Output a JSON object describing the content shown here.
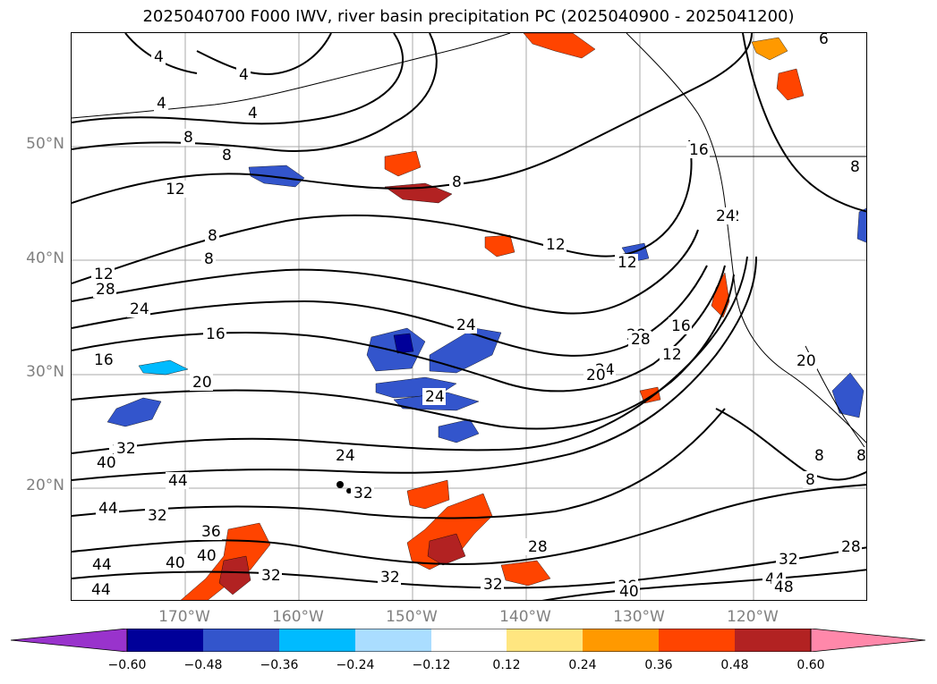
{
  "title": "2025040700 F000 IWV, river basin precipitation PC (2025040900 - 2025041200)",
  "map": {
    "lat_labels": [
      "50°N",
      "40°N",
      "30°N",
      "20°N"
    ],
    "lon_labels": [
      "170°W",
      "160°W",
      "150°W",
      "140°W",
      "130°W",
      "120°W"
    ],
    "contour_labels": [
      "4",
      "4",
      "4",
      "4",
      "8",
      "8",
      "12",
      "8",
      "8",
      "8",
      "12",
      "12",
      "12",
      "12",
      "16",
      "24",
      "28",
      "28",
      "24",
      "16",
      "20",
      "24",
      "28",
      "20",
      "24",
      "16",
      "12",
      "32",
      "20",
      "8",
      "8",
      "32",
      "40",
      "44",
      "44",
      "32",
      "36",
      "40",
      "40",
      "44",
      "44",
      "32",
      "32",
      "32",
      "24",
      "28",
      "28",
      "32",
      "36",
      "40",
      "44",
      "48",
      "32",
      "8",
      "8",
      "6",
      "16",
      "24"
    ],
    "colors": {
      "contour": "#000000",
      "grid": "#a9a9a9",
      "coast": "#000000",
      "frame": "#000000"
    }
  },
  "colorbar": {
    "ticks": [
      "−0.60",
      "−0.48",
      "−0.36",
      "−0.24",
      "−0.12",
      "0.12",
      "0.24",
      "0.36",
      "0.48",
      "0.60"
    ],
    "colors": [
      "#9933cc",
      "#000099",
      "#3355cc",
      "#00bbff",
      "#aaddff",
      "#ffffff",
      "#ffe680",
      "#ff9900",
      "#ff4400",
      "#b22222",
      "#ff88aa"
    ]
  }
}
